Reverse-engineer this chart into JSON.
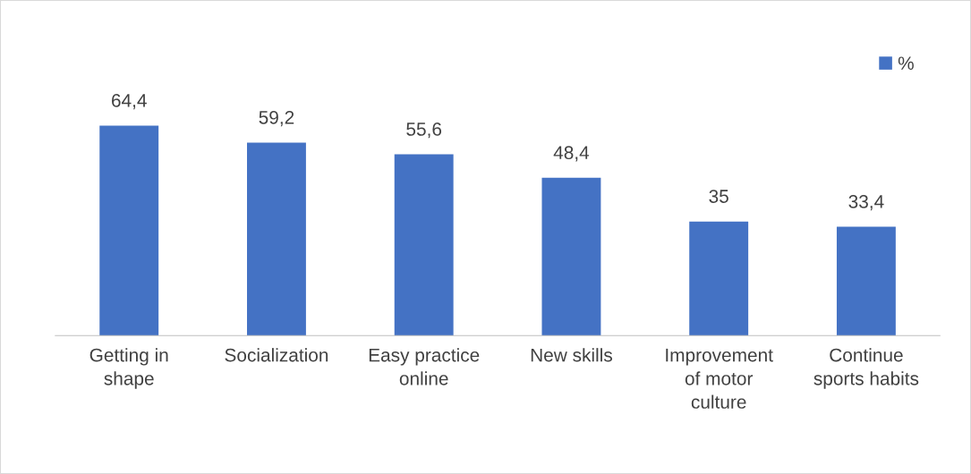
{
  "chart_data": {
    "type": "bar",
    "categories": [
      "Getting in\nshape",
      "Socialization",
      "Easy practice\nonline",
      "New skills",
      "Improvement\nof motor\nculture",
      "Continue\nsports habits"
    ],
    "series": [
      {
        "name": "%",
        "color": "#4472c4",
        "values": [
          64.4,
          59.2,
          55.6,
          48.4,
          35,
          33.4
        ],
        "value_labels": [
          "64,4",
          "59,2",
          "55,6",
          "48,4",
          "35",
          "33,4"
        ]
      }
    ],
    "legend": "top right",
    "grid": false
  }
}
